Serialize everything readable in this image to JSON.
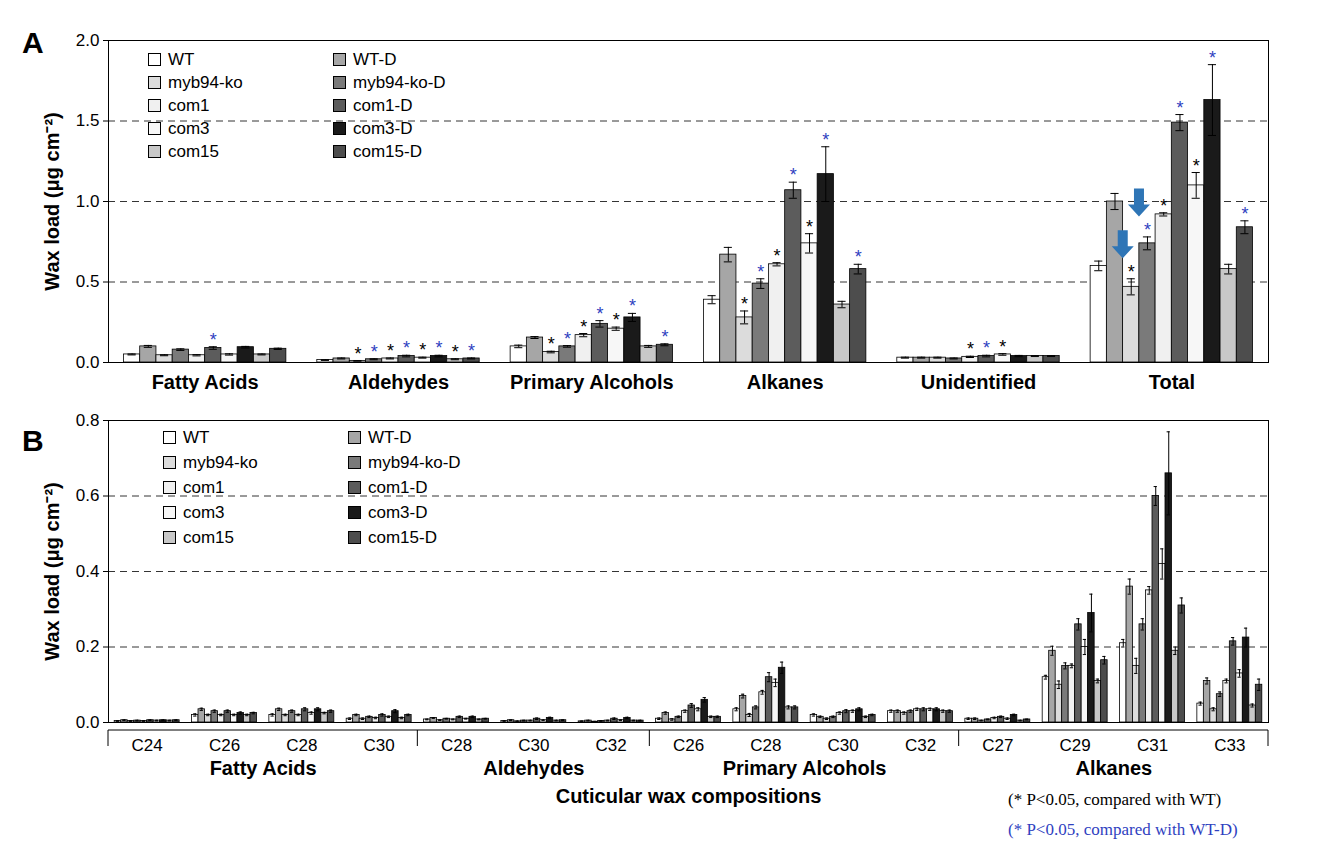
{
  "chart_data": [
    {
      "type": "bar",
      "title": "A",
      "y_label": "Wax load (μg cm⁻²)",
      "categories": [
        "Fatty Acids",
        "Aldehydes",
        "Primary Alcohols",
        "Alkanes",
        "Unidentified",
        "Total"
      ],
      "ylim": [
        0,
        2.0
      ],
      "yticks": [
        {
          "value": 0,
          "label": "0.0"
        },
        0.5,
        {
          "value": 1.0,
          "label": "1.0"
        },
        1.5,
        {
          "value": 2.0,
          "label": "2.0"
        }
      ],
      "grid": true,
      "legend": "top-left",
      "significance_symbol": "*",
      "series": [
        {
          "name": "WT",
          "color": "#ffffff",
          "values": [
            0.05,
            0.015,
            0.1,
            0.39,
            0.03,
            0.6
          ],
          "errors": [
            0.003,
            0.002,
            0.008,
            0.025,
            0.003,
            0.03
          ],
          "significance": [
            null,
            null,
            null,
            null,
            null,
            null
          ]
        },
        {
          "name": "WT-D",
          "color": "#a6a6a6",
          "values": [
            0.1,
            0.025,
            0.155,
            0.67,
            0.03,
            1.0
          ],
          "errors": [
            0.006,
            0.003,
            0.006,
            0.045,
            0.003,
            0.05
          ],
          "significance": [
            null,
            null,
            null,
            null,
            null,
            null
          ]
        },
        {
          "name": "myb94-ko",
          "color": "#dcdcdc",
          "values": [
            0.045,
            0.01,
            0.065,
            0.28,
            0.03,
            0.47
          ],
          "errors": [
            0.003,
            0.002,
            0.005,
            0.04,
            0.003,
            0.05
          ],
          "significance": [
            null,
            "WT",
            "WT",
            "WT",
            null,
            "WT"
          ]
        },
        {
          "name": "myb94-ko-D",
          "color": "#7a7a7a",
          "values": [
            0.08,
            0.02,
            0.1,
            0.49,
            0.025,
            0.74
          ],
          "errors": [
            0.005,
            0.003,
            0.005,
            0.03,
            0.003,
            0.04
          ],
          "significance": [
            null,
            "WT-D",
            "WT-D",
            "WT-D",
            null,
            "WT-D"
          ]
        },
        {
          "name": "com1",
          "color": "#f0f0f0",
          "values": [
            0.045,
            0.025,
            0.17,
            0.61,
            0.035,
            0.92
          ],
          "errors": [
            0.004,
            0.003,
            0.01,
            0.01,
            0.004,
            0.01
          ],
          "significance": [
            null,
            "WT",
            "WT",
            "WT",
            "WT",
            "WT"
          ]
        },
        {
          "name": "com1-D",
          "color": "#5c5c5c",
          "values": [
            0.09,
            0.04,
            0.24,
            1.07,
            0.04,
            1.49
          ],
          "errors": [
            0.008,
            0.005,
            0.02,
            0.05,
            0.005,
            0.05
          ],
          "significance": [
            "WT-D",
            "WT-D",
            "WT-D",
            "WT-D",
            "WT-D",
            "WT-D"
          ]
        },
        {
          "name": "com3",
          "color": "#f7f7f7",
          "values": [
            0.05,
            0.03,
            0.21,
            0.74,
            0.05,
            1.1
          ],
          "errors": [
            0.004,
            0.003,
            0.01,
            0.06,
            0.005,
            0.08
          ],
          "significance": [
            null,
            "WT",
            "WT",
            "WT",
            "WT",
            "WT"
          ]
        },
        {
          "name": "com3-D",
          "color": "#1a1a1a",
          "values": [
            0.095,
            0.04,
            0.28,
            1.17,
            0.04,
            1.63
          ],
          "errors": [
            0.005,
            0.005,
            0.025,
            0.17,
            0.004,
            0.22
          ],
          "significance": [
            null,
            "WT-D",
            "WT-D",
            "WT-D",
            null,
            "WT-D"
          ]
        },
        {
          "name": "com15",
          "color": "#c8c8c8",
          "values": [
            0.05,
            0.02,
            0.1,
            0.36,
            0.04,
            0.58
          ],
          "errors": [
            0.003,
            0.003,
            0.006,
            0.02,
            0.003,
            0.03
          ],
          "significance": [
            null,
            "WT",
            null,
            null,
            null,
            null
          ]
        },
        {
          "name": "com15-D",
          "color": "#4d4d4d",
          "values": [
            0.085,
            0.025,
            0.11,
            0.58,
            0.04,
            0.84
          ],
          "errors": [
            0.004,
            0.003,
            0.006,
            0.03,
            0.003,
            0.04
          ],
          "significance": [
            null,
            "WT-D",
            "WT-D",
            "WT-D",
            null,
            "WT-D"
          ]
        }
      ]
    },
    {
      "type": "bar",
      "title": "B",
      "y_label": "Wax load (μg cm⁻²)",
      "x_label": "Cuticular wax compositions",
      "categories": [
        "C24",
        "C26",
        "C28",
        "C30",
        "C28",
        "C30",
        "C32",
        "C26",
        "C28",
        "C30",
        "C32",
        "C27",
        "C29",
        "C31",
        "C33"
      ],
      "category_groups": [
        "Fatty Acids",
        "Fatty Acids",
        "Fatty Acids",
        "Fatty Acids",
        "Aldehydes",
        "Aldehydes",
        "Aldehydes",
        "Primary Alcohols",
        "Primary Alcohols",
        "Primary Alcohols",
        "Primary Alcohols",
        "Alkanes",
        "Alkanes",
        "Alkanes",
        "Alkanes"
      ],
      "ylim": [
        0,
        0.8
      ],
      "yticks": [
        {
          "value": 0,
          "label": "0.0"
        },
        0.2,
        0.4,
        0.6,
        0.8
      ],
      "grid": true,
      "legend": "top-left",
      "notes": [
        {
          "text": "(* P<0.05, compared with WT)",
          "color": "#000000",
          "reference": "WT"
        },
        {
          "text": "(* P<0.05, compared with WT-D)",
          "color": "#2f3fbf",
          "reference": "WT-D"
        }
      ],
      "series": [
        {
          "name": "WT",
          "color": "#ffffff",
          "values": [
            0.004,
            0.02,
            0.02,
            0.01,
            0.008,
            0.004,
            0.003,
            0.01,
            0.035,
            0.02,
            0.03,
            0.01,
            0.12,
            0.21,
            0.05
          ],
          "errors": [
            0.001,
            0.003,
            0.003,
            0.002,
            0.001,
            0.001,
            0.001,
            0.002,
            0.004,
            0.003,
            0.003,
            0.002,
            0.005,
            0.01,
            0.004
          ]
        },
        {
          "name": "WT-D",
          "color": "#a6a6a6",
          "values": [
            0.006,
            0.035,
            0.035,
            0.02,
            0.012,
            0.006,
            0.005,
            0.025,
            0.07,
            0.015,
            0.03,
            0.01,
            0.19,
            0.36,
            0.11
          ],
          "errors": [
            0.001,
            0.003,
            0.003,
            0.002,
            0.001,
            0.001,
            0.001,
            0.003,
            0.005,
            0.002,
            0.003,
            0.002,
            0.012,
            0.02,
            0.008
          ]
        },
        {
          "name": "myb94-ko",
          "color": "#dcdcdc",
          "values": [
            0.004,
            0.02,
            0.02,
            0.01,
            0.006,
            0.003,
            0.002,
            0.008,
            0.02,
            0.01,
            0.025,
            0.005,
            0.1,
            0.15,
            0.035
          ],
          "errors": [
            0.001,
            0.002,
            0.002,
            0.002,
            0.001,
            0.001,
            0.001,
            0.002,
            0.004,
            0.002,
            0.003,
            0.001,
            0.01,
            0.02,
            0.004
          ]
        },
        {
          "name": "myb94-ko-D",
          "color": "#7a7a7a",
          "values": [
            0.005,
            0.03,
            0.03,
            0.015,
            0.01,
            0.005,
            0.004,
            0.015,
            0.04,
            0.015,
            0.03,
            0.008,
            0.15,
            0.26,
            0.075
          ],
          "errors": [
            0.001,
            0.003,
            0.003,
            0.002,
            0.001,
            0.001,
            0.001,
            0.002,
            0.004,
            0.002,
            0.003,
            0.001,
            0.008,
            0.015,
            0.006
          ]
        },
        {
          "name": "com1",
          "color": "#f0f0f0",
          "values": [
            0.004,
            0.02,
            0.02,
            0.012,
            0.008,
            0.005,
            0.005,
            0.03,
            0.08,
            0.025,
            0.035,
            0.012,
            0.15,
            0.35,
            0.11
          ],
          "errors": [
            0.001,
            0.002,
            0.002,
            0.002,
            0.001,
            0.001,
            0.001,
            0.003,
            0.005,
            0.003,
            0.003,
            0.002,
            0.005,
            0.01,
            0.005
          ]
        },
        {
          "name": "com1-D",
          "color": "#5c5c5c",
          "values": [
            0.006,
            0.03,
            0.035,
            0.02,
            0.015,
            0.01,
            0.01,
            0.045,
            0.12,
            0.03,
            0.035,
            0.015,
            0.26,
            0.6,
            0.215
          ],
          "errors": [
            0.001,
            0.003,
            0.004,
            0.003,
            0.002,
            0.002,
            0.002,
            0.005,
            0.012,
            0.004,
            0.004,
            0.002,
            0.015,
            0.025,
            0.01
          ]
        },
        {
          "name": "com3",
          "color": "#f7f7f7",
          "values": [
            0.005,
            0.02,
            0.025,
            0.015,
            0.01,
            0.006,
            0.006,
            0.035,
            0.105,
            0.03,
            0.035,
            0.01,
            0.2,
            0.42,
            0.13
          ],
          "errors": [
            0.001,
            0.002,
            0.003,
            0.002,
            0.001,
            0.001,
            0.001,
            0.004,
            0.01,
            0.003,
            0.003,
            0.002,
            0.02,
            0.04,
            0.01
          ]
        },
        {
          "name": "com3-D",
          "color": "#1a1a1a",
          "values": [
            0.006,
            0.025,
            0.035,
            0.03,
            0.015,
            0.012,
            0.012,
            0.06,
            0.145,
            0.035,
            0.035,
            0.02,
            0.29,
            0.66,
            0.225
          ],
          "errors": [
            0.001,
            0.003,
            0.004,
            0.004,
            0.002,
            0.002,
            0.002,
            0.006,
            0.015,
            0.004,
            0.004,
            0.002,
            0.05,
            0.11,
            0.025
          ]
        },
        {
          "name": "com15",
          "color": "#c8c8c8",
          "values": [
            0.005,
            0.02,
            0.025,
            0.012,
            0.008,
            0.005,
            0.005,
            0.015,
            0.04,
            0.015,
            0.03,
            0.005,
            0.11,
            0.19,
            0.045
          ],
          "errors": [
            0.001,
            0.002,
            0.002,
            0.002,
            0.001,
            0.001,
            0.001,
            0.002,
            0.004,
            0.002,
            0.003,
            0.001,
            0.005,
            0.01,
            0.004
          ]
        },
        {
          "name": "com15-D",
          "color": "#4d4d4d",
          "values": [
            0.006,
            0.025,
            0.03,
            0.02,
            0.01,
            0.006,
            0.005,
            0.015,
            0.04,
            0.02,
            0.03,
            0.008,
            0.165,
            0.31,
            0.1
          ],
          "errors": [
            0.001,
            0.002,
            0.003,
            0.002,
            0.001,
            0.001,
            0.001,
            0.002,
            0.004,
            0.002,
            0.003,
            0.001,
            0.01,
            0.02,
            0.015
          ]
        }
      ]
    }
  ]
}
